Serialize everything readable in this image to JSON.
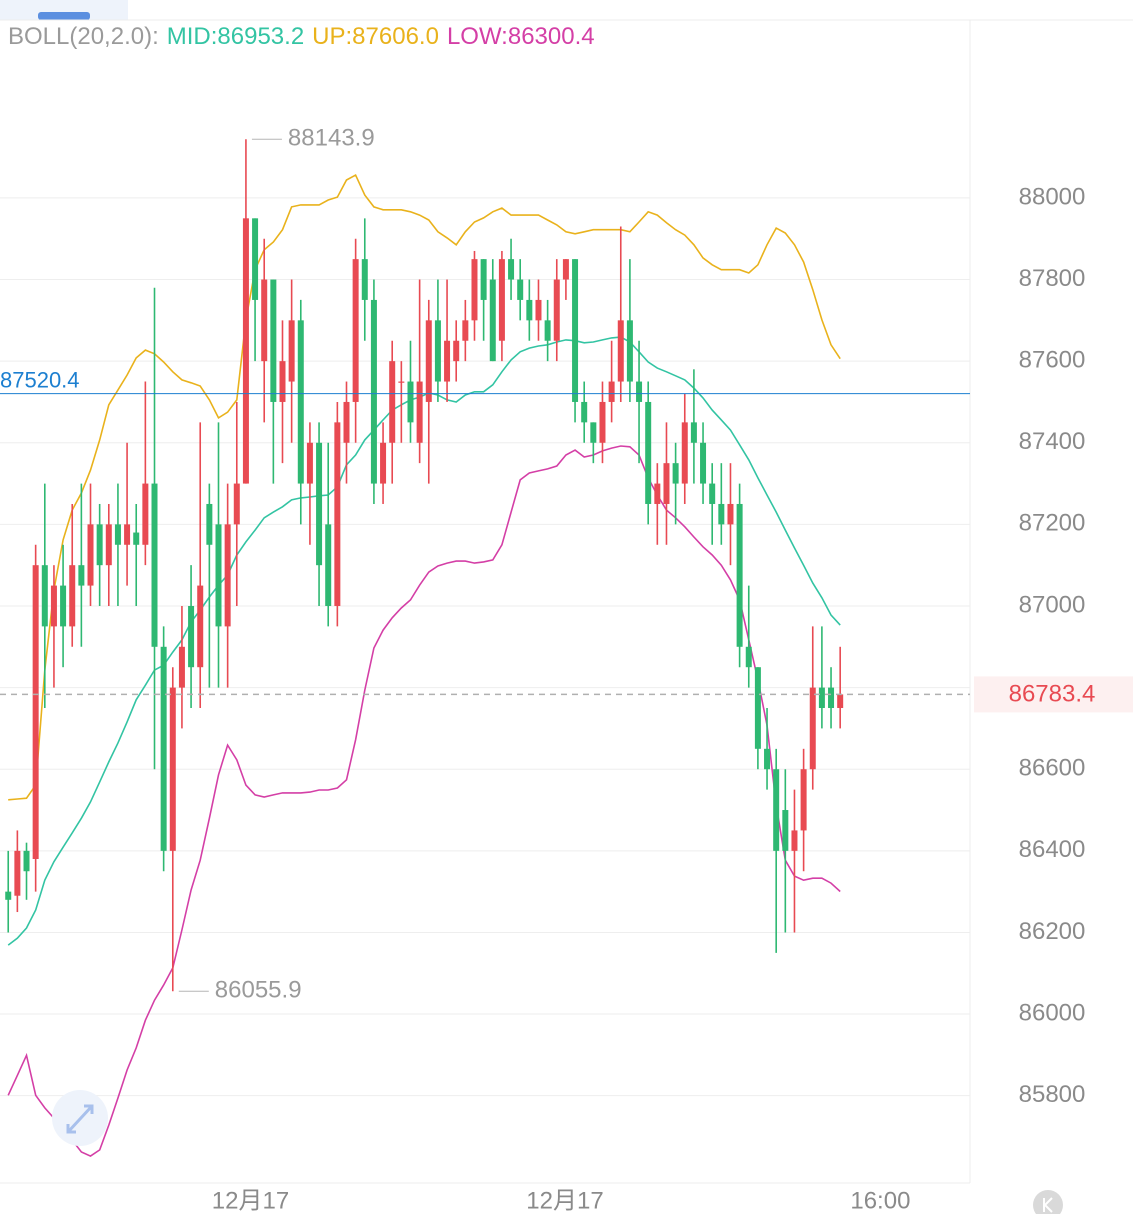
{
  "chart_data": {
    "type": "candlestick",
    "indicator_label": "BOLL(20,2.0):",
    "up_color": "#e84a52",
    "down_color": "#2eb872",
    "open": [
      86300,
      86290,
      86400,
      86380,
      87100,
      86950,
      87050,
      86950,
      87100,
      87050,
      87200,
      87100,
      87200,
      87150,
      87180,
      87150,
      87300,
      86900,
      86400,
      86800,
      87000,
      86850,
      87250,
      87200,
      86950,
      87200,
      87300,
      87950,
      87600,
      87800,
      87500,
      87550,
      87700,
      87300,
      87400,
      87200,
      87000,
      87400,
      87500,
      87850,
      87750,
      87300,
      87400,
      87550,
      87550,
      87400,
      87500,
      87700,
      87550,
      87600,
      87650,
      87700,
      87850,
      87800,
      87650,
      87850,
      87800,
      87750,
      87700,
      87700,
      87650,
      87800,
      87850,
      87500,
      87450,
      87400,
      87500,
      87550,
      87700,
      87550,
      87500,
      87250,
      87250,
      87350,
      87300,
      87450,
      87400,
      87300,
      87250,
      87200,
      87250,
      86900,
      86850,
      86650,
      86600,
      86500,
      86400,
      86450,
      86600,
      86800,
      86800,
      86750
    ],
    "high": [
      86400,
      86450,
      86420,
      87150,
      87300,
      87100,
      87150,
      87250,
      87300,
      87300,
      87250,
      87250,
      87300,
      87400,
      87250,
      87550,
      87780,
      86950,
      86850,
      87000,
      87100,
      87450,
      87300,
      87450,
      87300,
      87500,
      88143.9,
      87950,
      87900,
      87800,
      87700,
      87800,
      87750,
      87450,
      87450,
      87400,
      87500,
      87550,
      87900,
      87950,
      87800,
      87450,
      87650,
      87600,
      87650,
      87800,
      87750,
      87800,
      87800,
      87700,
      87750,
      87870,
      87850,
      87850,
      87870,
      87900,
      87850,
      87800,
      87800,
      87750,
      87850,
      87850,
      87850,
      87550,
      87450,
      87550,
      87650,
      87930,
      87850,
      87650,
      87550,
      87350,
      87450,
      87400,
      87520,
      87580,
      87450,
      87350,
      87350,
      87350,
      87300,
      87050,
      86850,
      86750,
      86650,
      86600,
      86550,
      86650,
      86950,
      86950,
      86850,
      86900
    ],
    "low": [
      86200,
      86250,
      86280,
      86300,
      86750,
      86800,
      86850,
      86900,
      86900,
      87000,
      87000,
      87000,
      87000,
      87050,
      87000,
      87100,
      86600,
      86350,
      86055.9,
      86700,
      86750,
      86750,
      86800,
      86800,
      86800,
      87000,
      87300,
      87600,
      87450,
      87300,
      87350,
      87400,
      87200,
      87150,
      87000,
      86950,
      86950,
      87300,
      87400,
      87650,
      87250,
      87250,
      87300,
      87400,
      87400,
      87350,
      87300,
      87500,
      87500,
      87550,
      87600,
      87650,
      87650,
      87600,
      87600,
      87750,
      87700,
      87650,
      87650,
      87600,
      87600,
      87750,
      87450,
      87400,
      87350,
      87350,
      87450,
      87500,
      87500,
      87350,
      87200,
      87150,
      87150,
      87200,
      87250,
      87300,
      87250,
      87150,
      87150,
      87100,
      86850,
      86800,
      86600,
      86550,
      86150,
      86200,
      86200,
      86350,
      86550,
      86700,
      86700,
      86700
    ],
    "close": [
      86280,
      86400,
      86350,
      87100,
      86950,
      87050,
      86950,
      87100,
      87050,
      87200,
      87100,
      87200,
      87150,
      87200,
      87150,
      87300,
      86900,
      86400,
      86800,
      86900,
      86850,
      87050,
      87150,
      86950,
      87200,
      87300,
      87950,
      87750,
      87800,
      87500,
      87600,
      87700,
      87300,
      87400,
      87100,
      87000,
      87450,
      87500,
      87850,
      87750,
      87300,
      87400,
      87600,
      87550,
      87450,
      87550,
      87700,
      87550,
      87650,
      87650,
      87700,
      87850,
      87750,
      87600,
      87850,
      87800,
      87750,
      87700,
      87750,
      87650,
      87800,
      87850,
      87500,
      87450,
      87400,
      87500,
      87550,
      87700,
      87550,
      87500,
      87250,
      87300,
      87350,
      87300,
      87450,
      87400,
      87300,
      87250,
      87200,
      87250,
      86900,
      86850,
      86650,
      86600,
      86400,
      86400,
      86450,
      86600,
      86800,
      86750,
      86750,
      86783.4
    ],
    "series": [
      {
        "name": "MID:86953.2",
        "color": "#33c4a3",
        "values": [
          86169,
          86186,
          86211,
          86255,
          86328,
          86373,
          86409,
          86444,
          86480,
          86520,
          86569,
          86618,
          86664,
          86716,
          86770,
          86806,
          86843,
          86855,
          86887,
          86917,
          86961,
          86990,
          87022,
          87051,
          87076,
          87125,
          87157,
          87186,
          87216,
          87230,
          87243,
          87260,
          87265,
          87267,
          87270,
          87272,
          87292,
          87346,
          87370,
          87407,
          87431,
          87456,
          87480,
          87493,
          87505,
          87512,
          87522,
          87517,
          87505,
          87500,
          87517,
          87525,
          87525,
          87542,
          87574,
          87603,
          87623,
          87632,
          87637,
          87640,
          87647,
          87652,
          87650,
          87645,
          87647,
          87652,
          87657,
          87659,
          87647,
          87623,
          87598,
          87583,
          87574,
          87564,
          87554,
          87534,
          87510,
          87480,
          87456,
          87431,
          87395,
          87358,
          87314,
          87272,
          87230,
          87186,
          87142,
          87100,
          87056,
          87020,
          86978,
          86953.2
        ]
      },
      {
        "name": "UP:87606.0",
        "color": "#e9b21c",
        "values": [
          86525,
          86527,
          86529,
          86561,
          86843,
          87039,
          87162,
          87235,
          87277,
          87333,
          87407,
          87493,
          87529,
          87566,
          87608,
          87627,
          87618,
          87598,
          87574,
          87554,
          87547,
          87539,
          87505,
          87461,
          87475,
          87505,
          87701,
          87824,
          87873,
          87892,
          87922,
          87978,
          87983,
          87983,
          87983,
          87995,
          88002,
          88044,
          88056,
          88007,
          87978,
          87971,
          87971,
          87971,
          87966,
          87958,
          87946,
          87917,
          87902,
          87885,
          87917,
          87941,
          87951,
          87966,
          87975,
          87958,
          87958,
          87958,
          87958,
          87946,
          87934,
          87917,
          87912,
          87917,
          87922,
          87922,
          87922,
          87922,
          87917,
          87941,
          87966,
          87958,
          87939,
          87922,
          87909,
          87885,
          87853,
          87836,
          87824,
          87824,
          87824,
          87816,
          87836,
          87885,
          87926,
          87914,
          87885,
          87843,
          87775,
          87701,
          87640,
          87606
        ]
      },
      {
        "name": "LOW:86300.4",
        "color": "#d43fa6",
        "values": [
          85801,
          85850,
          85899,
          85801,
          85770,
          85745,
          85721,
          85691,
          85662,
          85652,
          85667,
          85728,
          85794,
          85863,
          85917,
          85985,
          86034,
          86071,
          86113,
          86206,
          86304,
          86377,
          86480,
          86586,
          86659,
          86623,
          86561,
          86537,
          86532,
          86537,
          86542,
          86542,
          86542,
          86544,
          86549,
          86549,
          86554,
          86574,
          86672,
          86794,
          86897,
          86941,
          86971,
          86995,
          87015,
          87051,
          87083,
          87098,
          87105,
          87110,
          87110,
          87105,
          87108,
          87113,
          87150,
          87230,
          87309,
          87326,
          87331,
          87336,
          87343,
          87370,
          87382,
          87365,
          87370,
          87380,
          87387,
          87392,
          87390,
          87370,
          87314,
          87272,
          87235,
          87216,
          87194,
          87169,
          87145,
          87125,
          87100,
          87064,
          87015,
          86917,
          86819,
          86708,
          86512,
          86377,
          86338,
          86328,
          86333,
          86333,
          86321,
          86300.4
        ]
      }
    ],
    "price_line": {
      "value": 87520.4,
      "color": "#1c7fd0"
    },
    "last_price": {
      "value": 86783.4,
      "color": "#e84a52"
    },
    "xlim": [
      -0.9,
      105.2
    ],
    "xticks": [
      {
        "value": 26.5,
        "label": "12月17"
      },
      {
        "value": 60.9,
        "label": "12月17"
      },
      {
        "value": 95.4,
        "label": "16:00"
      }
    ],
    "ylim": [
      85586,
      88436
    ],
    "yticks": [
      85800,
      86000,
      86200,
      86400,
      86600,
      86800,
      87000,
      87200,
      87400,
      87600,
      87800,
      88000
    ],
    "grid": true
  }
}
